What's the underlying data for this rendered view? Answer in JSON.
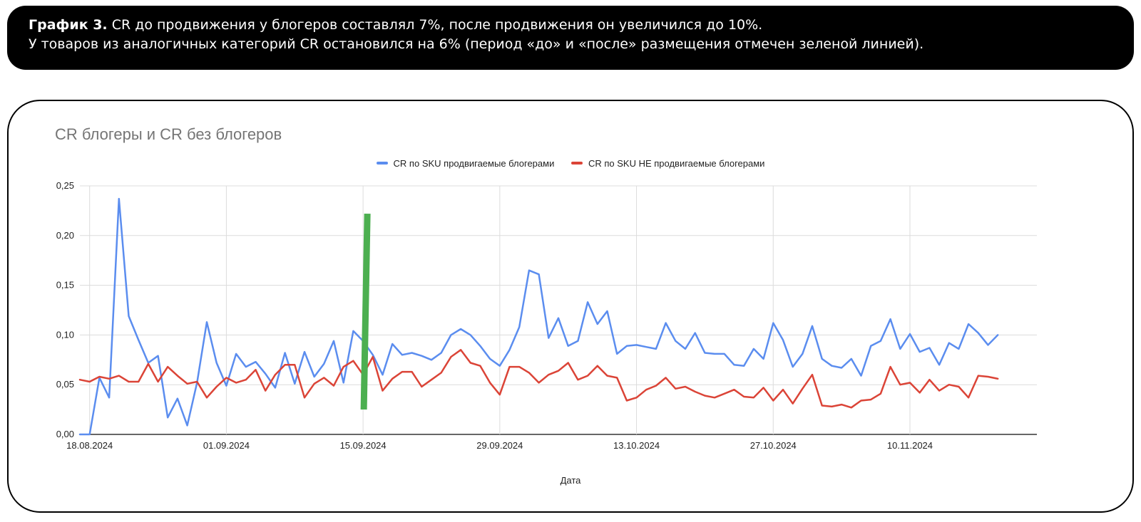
{
  "caption": {
    "bold": "График 3.",
    "line1": " CR до продвижения у блогеров составлял 7%, после продвижения он увеличился до 10%.",
    "line2": "У товаров из аналогичных категорий CR остановился на 6% (период «до» и «после» размещения отмечен зеленой линией)."
  },
  "chart_data": {
    "type": "line",
    "title": "CR блогеры и CR без блогеров",
    "xlabel": "Дата",
    "ylabel": "",
    "ylim": [
      0,
      0.25
    ],
    "yticks": [
      "0,00",
      "0,05",
      "0,10",
      "0,15",
      "0,20",
      "0,25"
    ],
    "yticks_values": [
      0,
      0.05,
      0.1,
      0.15,
      0.2,
      0.25
    ],
    "xlim": [
      "17.08.2024",
      "23.11.2024"
    ],
    "xticks": [
      "18.08.2024",
      "01.09.2024",
      "15.09.2024",
      "29.09.2024",
      "13.10.2024",
      "27.10.2024",
      "10.11.2024"
    ],
    "grid": true,
    "legend_position": "top",
    "marker": {
      "date": "15.09.2024",
      "color": "#4caf50"
    },
    "series": [
      {
        "name": "CR по SKU продвигаемые блогерами",
        "color": "#5b8def",
        "values": [
          0.0,
          0.0,
          0.057,
          0.037,
          0.237,
          0.119,
          0.095,
          0.072,
          0.079,
          0.017,
          0.036,
          0.009,
          0.052,
          0.113,
          0.072,
          0.049,
          0.081,
          0.068,
          0.073,
          0.061,
          0.047,
          0.082,
          0.051,
          0.083,
          0.058,
          0.071,
          0.094,
          0.052,
          0.104,
          0.094,
          0.08,
          0.06,
          0.091,
          0.08,
          0.082,
          0.079,
          0.075,
          0.082,
          0.1,
          0.106,
          0.1,
          0.089,
          0.076,
          0.069,
          0.085,
          0.108,
          0.165,
          0.161,
          0.097,
          0.117,
          0.089,
          0.094,
          0.133,
          0.111,
          0.124,
          0.081,
          0.089,
          0.09,
          0.088,
          0.086,
          0.112,
          0.094,
          0.086,
          0.102,
          0.082,
          0.081,
          0.081,
          0.07,
          0.069,
          0.086,
          0.076,
          0.112,
          0.095,
          0.068,
          0.081,
          0.109,
          0.076,
          0.069,
          0.067,
          0.076,
          0.059,
          0.089,
          0.094,
          0.116,
          0.086,
          0.101,
          0.083,
          0.087,
          0.07,
          0.092,
          0.086,
          0.111,
          0.102,
          0.09,
          0.1
        ]
      },
      {
        "name": "CR по SKU НЕ продвигаемые блогерами",
        "color": "#db4437",
        "values": [
          0.055,
          0.053,
          0.058,
          0.056,
          0.059,
          0.053,
          0.053,
          0.071,
          0.053,
          0.068,
          0.059,
          0.051,
          0.053,
          0.037,
          0.048,
          0.057,
          0.052,
          0.055,
          0.065,
          0.044,
          0.06,
          0.07,
          0.07,
          0.037,
          0.051,
          0.057,
          0.049,
          0.068,
          0.074,
          0.06,
          0.078,
          0.044,
          0.056,
          0.063,
          0.063,
          0.048,
          0.055,
          0.062,
          0.078,
          0.085,
          0.072,
          0.069,
          0.052,
          0.04,
          0.068,
          0.068,
          0.062,
          0.052,
          0.06,
          0.064,
          0.072,
          0.055,
          0.059,
          0.069,
          0.059,
          0.057,
          0.034,
          0.037,
          0.045,
          0.049,
          0.057,
          0.046,
          0.048,
          0.043,
          0.039,
          0.037,
          0.041,
          0.045,
          0.038,
          0.037,
          0.047,
          0.034,
          0.045,
          0.031,
          0.046,
          0.06,
          0.029,
          0.028,
          0.03,
          0.027,
          0.034,
          0.035,
          0.041,
          0.068,
          0.05,
          0.052,
          0.042,
          0.055,
          0.044,
          0.05,
          0.048,
          0.037,
          0.059,
          0.058,
          0.056
        ]
      }
    ]
  }
}
